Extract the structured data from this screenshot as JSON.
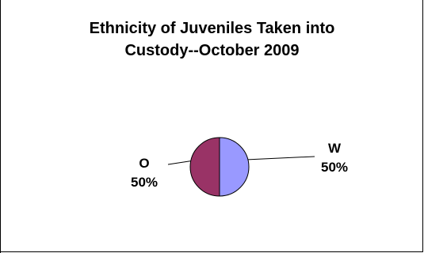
{
  "chart_data": {
    "type": "pie",
    "title_lines": [
      "Ethnicity of Juveniles Taken into",
      "Custody--October 2009"
    ],
    "slices": [
      {
        "category": "W",
        "value": 50,
        "percent_label": "50%",
        "color": "#9999ff"
      },
      {
        "category": "O",
        "value": 50,
        "percent_label": "50%",
        "color": "#993366"
      }
    ],
    "legend": "none",
    "data_labels": "category and percent, outside with leader lines"
  }
}
